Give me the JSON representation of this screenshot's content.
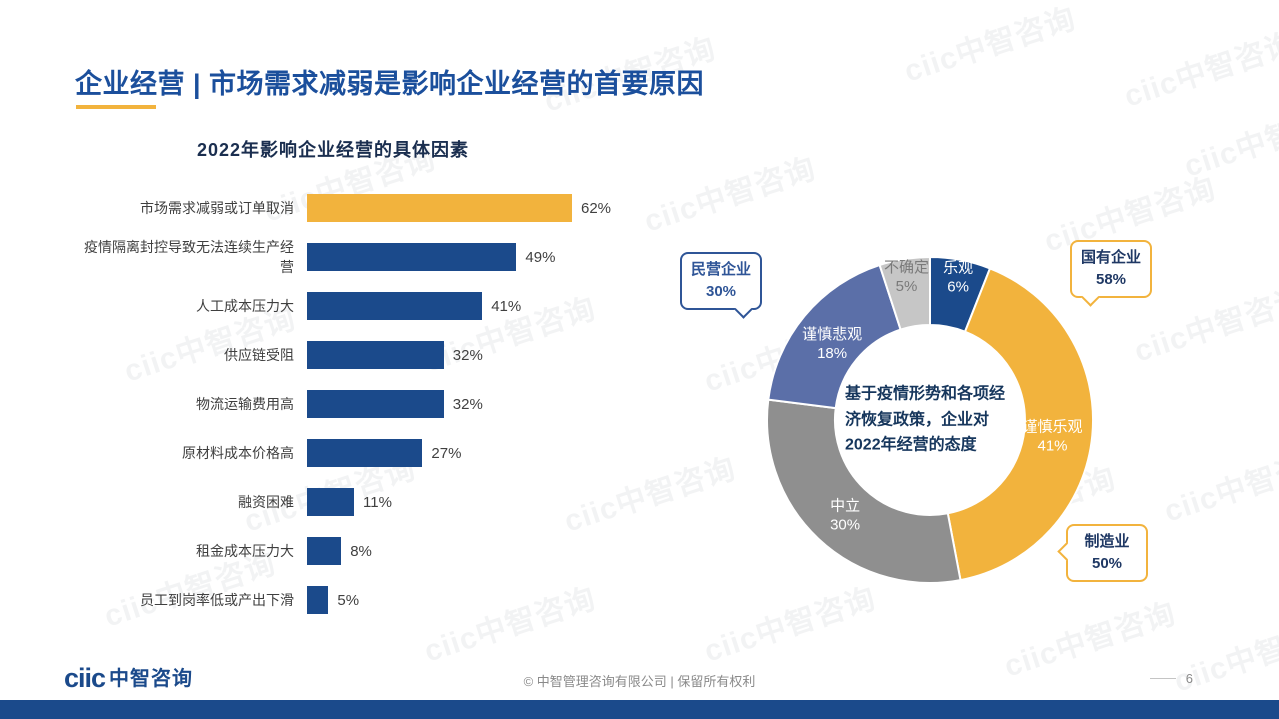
{
  "slide": {
    "title": "企业经营 | 市场需求减弱是影响企业经营的首要原因",
    "page_number": "6"
  },
  "colors": {
    "navy": "#1B4A8B",
    "gold": "#F2B33D",
    "title_blue": "#1B4F9C",
    "text_dark": "#3F3F3F",
    "footer_gray": "#8A8A8A"
  },
  "chart_data": [
    {
      "type": "bar",
      "orientation": "horizontal",
      "title": "2022年影响企业经营的具体因素",
      "categories": [
        "市场需求减弱或订单取消",
        "疫情隔离封控导致无法连续生产经营",
        "人工成本压力大",
        "供应链受阻",
        "物流运输费用高",
        "原材料成本价格高",
        "融资困难",
        "租金成本压力大",
        "员工到岗率低或产出下滑"
      ],
      "values": [
        62,
        49,
        41,
        32,
        32,
        27,
        11,
        8,
        5
      ],
      "value_suffix": "%",
      "bar_colors": [
        "#F2B33D",
        "#1B4A8B",
        "#1B4A8B",
        "#1B4A8B",
        "#1B4A8B",
        "#1B4A8B",
        "#1B4A8B",
        "#1B4A8B",
        "#1B4A8B"
      ],
      "xlim": [
        0,
        70
      ],
      "grid": false
    },
    {
      "type": "pie",
      "subtype": "donut",
      "center_text": "基于疫情形势和各项经济恢复政策，企业对2022年经营的态度",
      "start_angle": "12-oclock",
      "direction": "clockwise",
      "slices": [
        {
          "label": "乐观",
          "value": 6,
          "color": "#1B4A8B",
          "label_color": "#FFFFFF"
        },
        {
          "label": "谨慎乐观",
          "value": 41,
          "color": "#F2B33D",
          "label_color": "#FFFFFF"
        },
        {
          "label": "中立",
          "value": 30,
          "color": "#8F8F8F",
          "label_color": "#FFFFFF"
        },
        {
          "label": "谨慎悲观",
          "value": 18,
          "color": "#5B6FA8",
          "label_color": "#FFFFFF"
        },
        {
          "label": "不确定",
          "value": 5,
          "color": "#C6C6C6",
          "label_color": "#7A7A7A"
        }
      ],
      "callouts": [
        {
          "label": "民营企业",
          "value": "30%",
          "accent": "#2F5597",
          "text_color": "#2F5597"
        },
        {
          "label": "国有企业",
          "value": "58%",
          "accent": "#F2B33D",
          "text_color": "#1F3864"
        },
        {
          "label": "制造业",
          "value": "50%",
          "accent": "#F2B33D",
          "text_color": "#1F3864"
        }
      ]
    }
  ],
  "footer": {
    "logo_mark": "ciic",
    "logo_text": "中智咨询",
    "copyright": "© 中智管理咨询有限公司 | 保留所有权利"
  },
  "watermark": {
    "text": "ciic中智咨询"
  }
}
